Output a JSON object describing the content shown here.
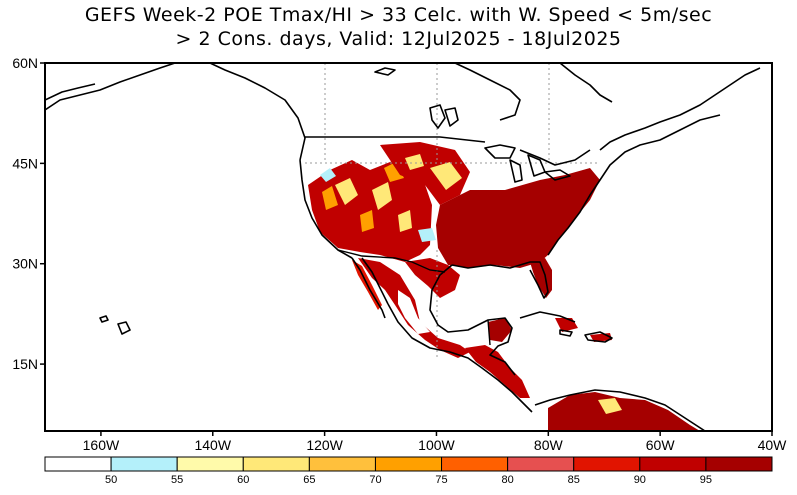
{
  "title_line1": "GEFS Week-2 POE Tmax/HI > 33 Celc. with W. Speed < 5m/sec",
  "title_line2": "> 2 Cons. days, Valid: 12Jul2025 - 18Jul2025",
  "map": {
    "lon_range": [
      -170,
      -40
    ],
    "lat_range": [
      5,
      60
    ],
    "lat_ticks": [
      {
        "value": 60,
        "label": "60N"
      },
      {
        "value": 45,
        "label": "45N"
      },
      {
        "value": 30,
        "label": "30N"
      },
      {
        "value": 15,
        "label": "15N"
      }
    ],
    "lon_ticks": [
      {
        "value": -160,
        "label": "160W"
      },
      {
        "value": -140,
        "label": "140W"
      },
      {
        "value": -120,
        "label": "120W"
      },
      {
        "value": -100,
        "label": "100W"
      },
      {
        "value": -80,
        "label": "80W"
      },
      {
        "value": -60,
        "label": "60W"
      },
      {
        "value": -40,
        "label": "40W"
      }
    ]
  },
  "colorbar": {
    "colors": [
      "#ffffff",
      "#b4f0fa",
      "#fffaaa",
      "#ffe878",
      "#ffc03c",
      "#ffa000",
      "#ff6000",
      "#e65050",
      "#e11400",
      "#c00000",
      "#a50000"
    ],
    "labels": [
      "50",
      "55",
      "60",
      "65",
      "70",
      "75",
      "80",
      "85",
      "90",
      "95"
    ]
  },
  "colors": {
    "red_dark": "#a50000",
    "red": "#c00000",
    "red_mid": "#e11400",
    "orange": "#ffa000",
    "yellow": "#ffe878",
    "cyan": "#b4f0fa"
  }
}
